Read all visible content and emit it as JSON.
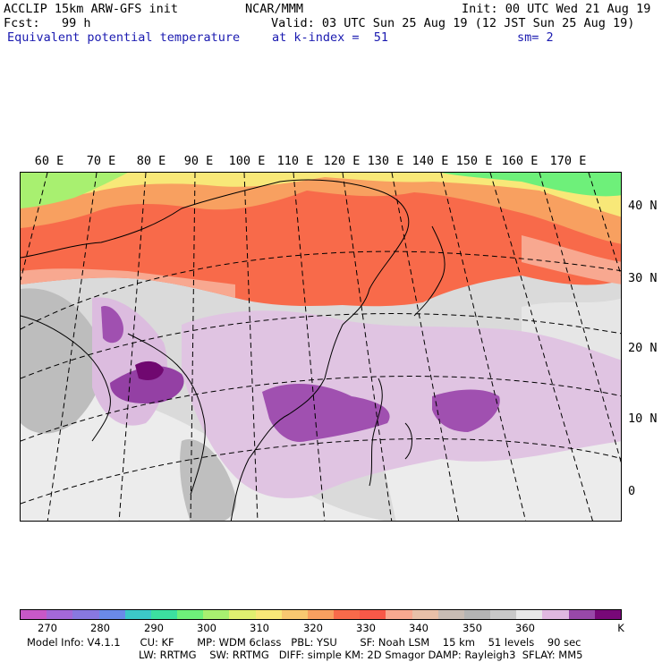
{
  "header": {
    "left_line1": "ACCLIP 15km ARW-GFS init",
    "left_line2": "Fcst:   99 h",
    "field_name": "Equivalent potential temperature",
    "center_line1": "NCAR/MMM",
    "valid_line": "Valid: 03 UTC Sun 25 Aug 19 (12 JST Sun 25 Aug 19)",
    "level_line": "at k-index =  51",
    "smooth_line": "sm= 2",
    "init_line": "Init: 00 UTC Wed 21 Aug 19"
  },
  "map": {
    "longitude_labels": [
      "60 E",
      "70 E",
      "80 E",
      "90 E",
      "100 E",
      "110 E",
      "120 E",
      "130 E",
      "140 E",
      "150 E",
      "160 E",
      "170 E"
    ],
    "latitude_labels": [
      "40 N",
      "30 N",
      "20 N",
      "10 N",
      "0"
    ]
  },
  "colorbar": {
    "colors": [
      "#c858c8",
      "#a468d8",
      "#8878e0",
      "#6a8ae8",
      "#3cc8c8",
      "#3ce0a0",
      "#6ef07a",
      "#a8f070",
      "#e0f070",
      "#f8e878",
      "#f8c870",
      "#f8a060",
      "#f86a4a",
      "#f85848",
      "#f8a890",
      "#e8c0a8",
      "#c8bcb4",
      "#b4b4b4",
      "#c8c8c8",
      "#e8e8e8",
      "#e0b8e0",
      "#9848a8",
      "#780878"
    ],
    "tick_labels": [
      "270",
      "280",
      "290",
      "300",
      "310",
      "320",
      "330",
      "340",
      "350",
      "360"
    ],
    "unit": "K"
  },
  "model_info": {
    "line1": "Model Info: V4.1.1      CU: KF       MP: WDM 6class   PBL: YSU       SF: Noah LSM    15 km    51 levels    90 sec",
    "line2": "LW: RRTMG    SW: RRTMG   DIFF: simple KM: 2D Smagor DAMP: Rayleigh3  SFLAY: MM5"
  }
}
